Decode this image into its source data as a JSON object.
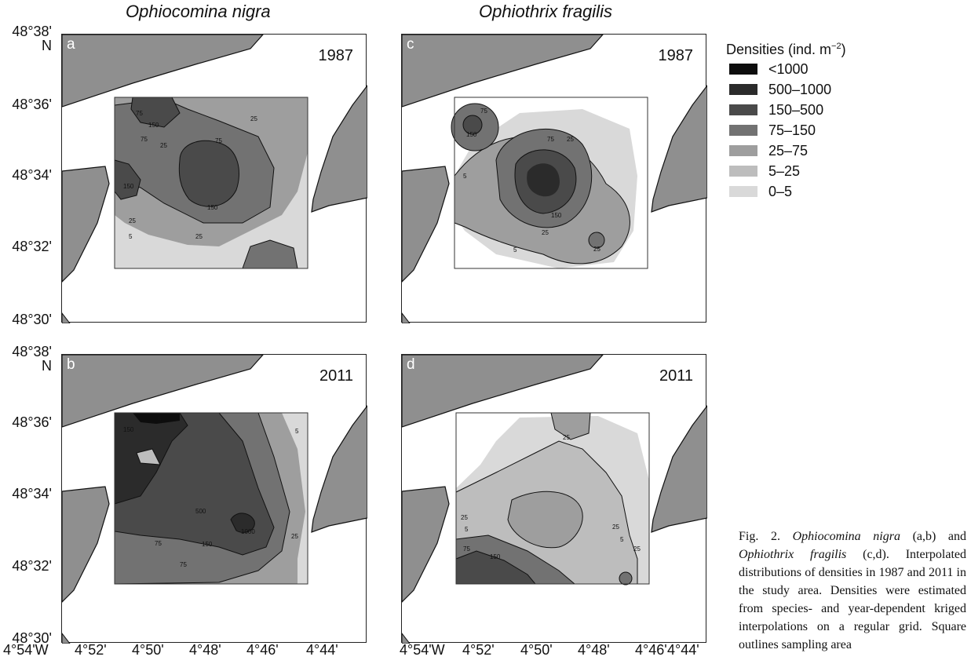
{
  "figure": {
    "columns": [
      "Ophiocomina nigra",
      "Ophiothrix fragilis"
    ],
    "y_axis_labels": [
      "48°38'",
      "48°36'",
      "48°34'",
      "48°32'",
      "48°30'"
    ],
    "north_label": "N",
    "x_axis_labels": [
      "4°54'W",
      "4°52'",
      "4°50'",
      "4°48'",
      "4°46'",
      "4°44'"
    ],
    "panels": [
      {
        "letter": "a",
        "year": "1987"
      },
      {
        "letter": "c",
        "year": "1987"
      },
      {
        "letter": "b",
        "year": "2011"
      },
      {
        "letter": "d",
        "year": "2011"
      }
    ],
    "contour_labels": {
      "a": [
        "75",
        "150",
        "75",
        "25",
        "75",
        "150",
        "25",
        "5",
        "150",
        "25",
        "25"
      ],
      "c": [
        "75",
        "150",
        "75",
        "25",
        "5",
        "150",
        "25",
        "25",
        "5"
      ],
      "b": [
        "5",
        "150",
        "500",
        "1000",
        "75",
        "150",
        "75",
        "25",
        "5"
      ],
      "d": [
        "25",
        "25",
        "5",
        "75",
        "150",
        "25",
        "5",
        "25"
      ]
    }
  },
  "legend": {
    "title_prefix": "Densities (ind. m",
    "title_sup": "−2",
    "title_suffix": ")",
    "items": [
      {
        "label": "<1000",
        "color": "#0d0d0d"
      },
      {
        "label": "500–1000",
        "color": "#2b2b2b"
      },
      {
        "label": "150–500",
        "color": "#4a4a4a"
      },
      {
        "label": "75–150",
        "color": "#727272"
      },
      {
        "label": "25–75",
        "color": "#9e9e9e"
      },
      {
        "label": "5–25",
        "color": "#bdbdbd"
      },
      {
        "label": "0–5",
        "color": "#d9d9d9"
      }
    ]
  },
  "caption": {
    "prefix": "Fig. 2.",
    "species1": "Ophiocomina nigra",
    "part1": "(a,b) and",
    "species2": "Ophiothrix fragilis",
    "part2": "(c,d). Interpolated distributions of densities in 1987 and 2011 in the study area. Densities were estimated from species- and year-dependent kriged interpolations on a regular grid. Square outlines sampling area"
  },
  "colors": {
    "land": "#8f8f8f",
    "sea": "#ffffff"
  }
}
